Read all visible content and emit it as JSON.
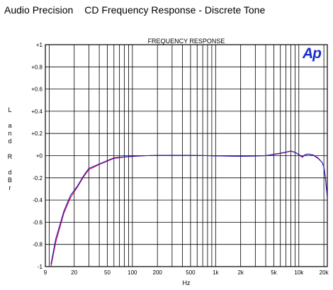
{
  "header": {
    "brand": "Audio Precision",
    "title": "CD Frequency Response - Discrete Tone"
  },
  "logo": {
    "text": "Ap",
    "color": "#1a2fd0"
  },
  "chart_data": {
    "type": "line",
    "title": "FREQUENCY RESPONSE",
    "xlabel": "Hz",
    "ylabel_lines": [
      "L",
      "",
      "a",
      "n",
      "d",
      "",
      "R",
      "",
      "d",
      "B",
      "r"
    ],
    "x_scale": "log",
    "xlim": [
      9,
      22000
    ],
    "ylim": [
      -1,
      1
    ],
    "grid": true,
    "x_ticks": [
      {
        "value": 9,
        "label": "9"
      },
      {
        "value": 20,
        "label": "20"
      },
      {
        "value": 50,
        "label": "50"
      },
      {
        "value": 100,
        "label": "100"
      },
      {
        "value": 200,
        "label": "200"
      },
      {
        "value": 500,
        "label": "500"
      },
      {
        "value": 1000,
        "label": "1k"
      },
      {
        "value": 2000,
        "label": "2k"
      },
      {
        "value": 5000,
        "label": "5k"
      },
      {
        "value": 10000,
        "label": "10k"
      },
      {
        "value": 20000,
        "label": "20k"
      }
    ],
    "y_ticks": [
      {
        "value": 1,
        "label": "+1"
      },
      {
        "value": 0.8,
        "label": "+0.8"
      },
      {
        "value": 0.6,
        "label": "+0.6"
      },
      {
        "value": 0.4,
        "label": "+0.4"
      },
      {
        "value": 0.2,
        "label": "+0.2"
      },
      {
        "value": 0,
        "label": "+0"
      },
      {
        "value": -0.2,
        "label": "-0.2"
      },
      {
        "value": -0.4,
        "label": "-0.4"
      },
      {
        "value": -0.6,
        "label": "-0.6"
      },
      {
        "value": -0.8,
        "label": "-0.8"
      },
      {
        "value": -1,
        "label": "-1"
      }
    ],
    "series": [
      {
        "color": "#e0004e",
        "x": [
          10.5,
          12,
          15,
          18,
          22,
          26,
          30,
          40,
          50,
          60,
          75,
          90,
          110,
          150,
          200,
          300,
          500,
          800,
          1000,
          2000,
          3000,
          4000,
          5000,
          6000,
          7000,
          8000,
          9000,
          10000,
          11000,
          12000,
          13000,
          15000,
          17000,
          19000,
          20000,
          21000,
          22000
        ],
        "y": [
          -1.0,
          -0.78,
          -0.52,
          -0.38,
          -0.28,
          -0.19,
          -0.125,
          -0.08,
          -0.05,
          -0.025,
          -0.015,
          -0.01,
          -0.005,
          0.0,
          0.002,
          0.003,
          0.002,
          0.0,
          -0.002,
          -0.005,
          -0.003,
          0.0,
          0.01,
          0.02,
          0.03,
          0.04,
          0.03,
          0.01,
          -0.01,
          0.01,
          0.015,
          0.005,
          -0.02,
          -0.06,
          -0.1,
          -0.22,
          -0.37
        ]
      },
      {
        "color": "#1a1ab0",
        "x": [
          10.5,
          12,
          15,
          18,
          22,
          26,
          30,
          40,
          50,
          60,
          75,
          90,
          110,
          150,
          200,
          300,
          500,
          800,
          1000,
          2000,
          3000,
          4000,
          5000,
          6000,
          7000,
          8000,
          9000,
          10000,
          11000,
          12000,
          13000,
          15000,
          17000,
          19000,
          20000,
          21000,
          22000
        ],
        "y": [
          -0.98,
          -0.75,
          -0.5,
          -0.36,
          -0.27,
          -0.18,
          -0.115,
          -0.075,
          -0.045,
          -0.02,
          -0.012,
          -0.008,
          -0.004,
          0.0,
          0.002,
          0.003,
          0.002,
          0.0,
          -0.002,
          -0.006,
          -0.004,
          0.0,
          0.012,
          0.022,
          0.032,
          0.042,
          0.03,
          0.008,
          -0.015,
          0.008,
          0.015,
          0.003,
          -0.025,
          -0.06,
          -0.1,
          -0.22,
          -0.38
        ]
      }
    ]
  }
}
